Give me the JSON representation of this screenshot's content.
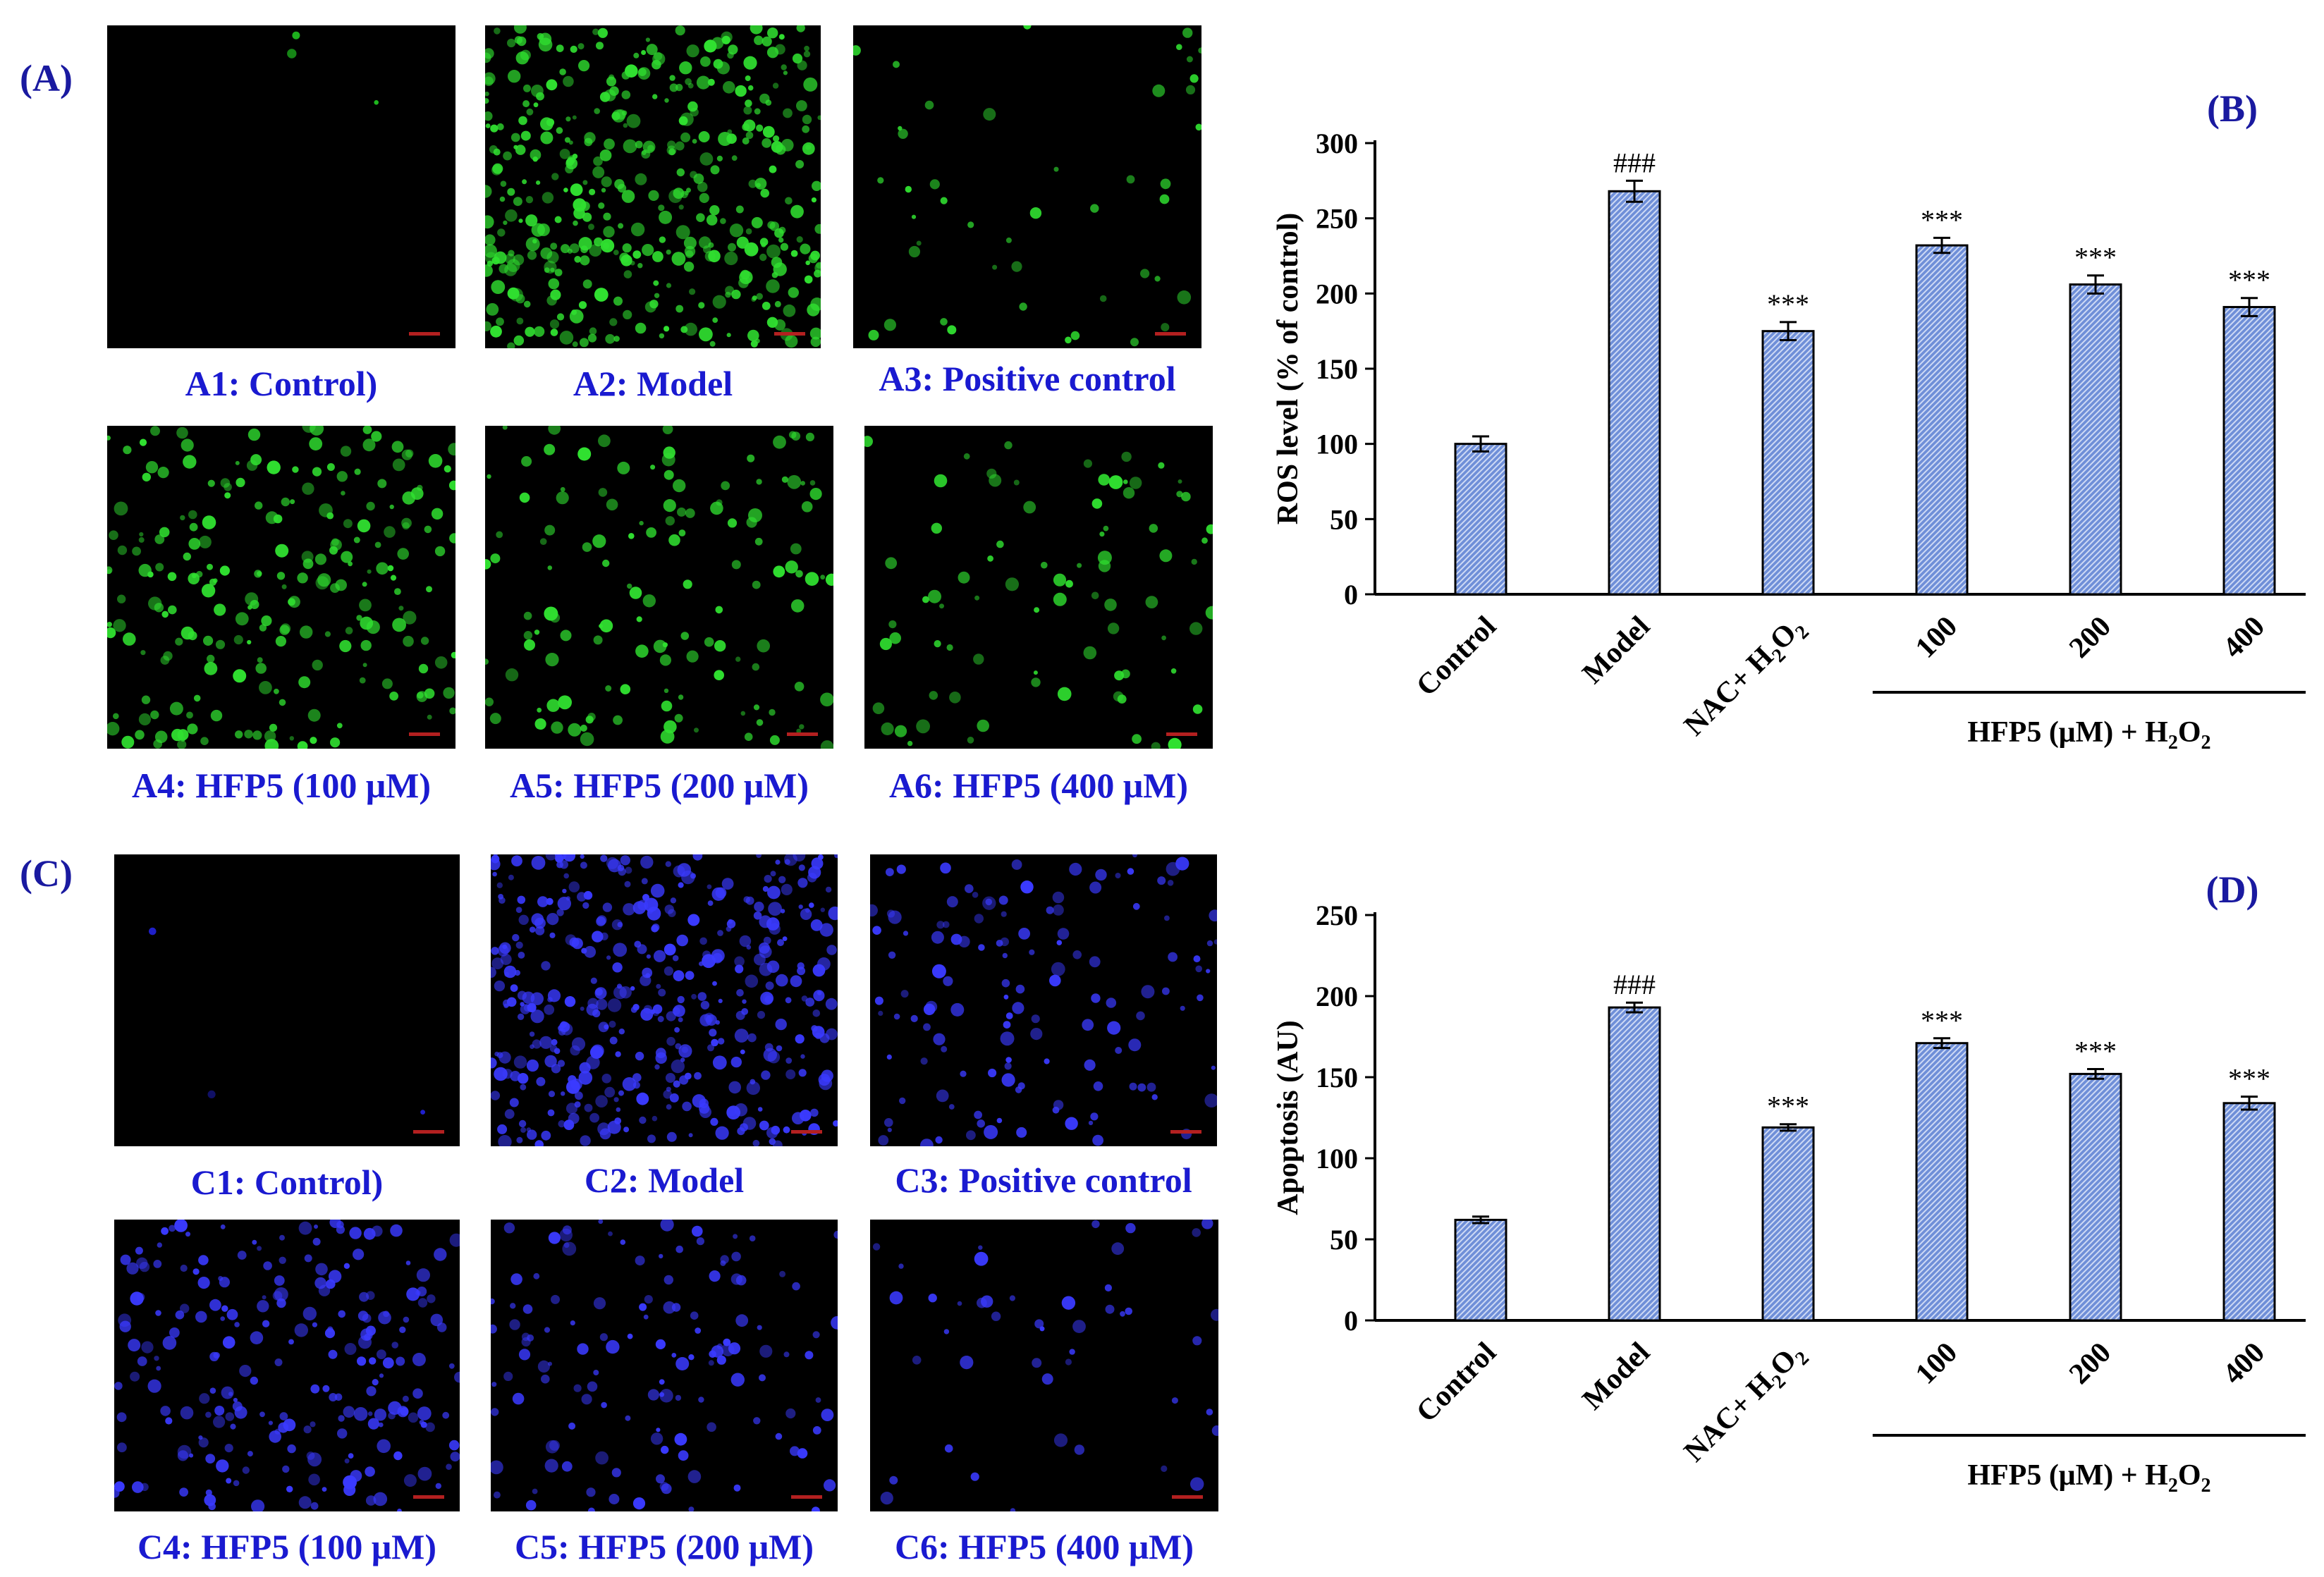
{
  "panels": {
    "A": "(A)",
    "B": "(B)",
    "C": "(C)",
    "D": "(D)"
  },
  "ros_images": [
    {
      "caption": "A1: Control)",
      "density": "minimal",
      "color": "#20c020"
    },
    {
      "caption": "A2: Model",
      "density": "very high",
      "color": "#30e030"
    },
    {
      "caption": "A3: Positive control",
      "density": "low",
      "color": "#30e030"
    },
    {
      "caption": "A4: HFP5 (100 μM)",
      "density": "high",
      "color": "#30e030"
    },
    {
      "caption": "A5: HFP5 (200 μM)",
      "density": "medium",
      "color": "#30e030"
    },
    {
      "caption": "A6: HFP5 (400 μM)",
      "density": "medium-low",
      "color": "#30e030"
    }
  ],
  "apoptosis_images": [
    {
      "caption": "C1: Control)",
      "density": "minimal",
      "color": "#2020d0"
    },
    {
      "caption": "C2: Model",
      "density": "very high",
      "color": "#3a3aff"
    },
    {
      "caption": "C3: Positive control",
      "density": "medium",
      "color": "#3a3aff"
    },
    {
      "caption": "C4: HFP5 (100 μM)",
      "density": "high",
      "color": "#3a3aff"
    },
    {
      "caption": "C5: HFP5 (200 μM)",
      "density": "medium",
      "color": "#3a3aff"
    },
    {
      "caption": "C6: HFP5 (400 μM)",
      "density": "low",
      "color": "#3a3aff"
    }
  ],
  "chart_data": [
    {
      "type": "bar",
      "panel": "B",
      "categories": [
        "Control",
        "Model",
        "NAC+ H2O2",
        "100",
        "200",
        "400"
      ],
      "values": [
        100,
        268,
        175,
        232,
        206,
        191
      ],
      "errors": [
        5,
        7,
        6,
        5,
        6,
        6
      ],
      "annotations": [
        "",
        "###",
        "***",
        "***",
        "***",
        "***"
      ],
      "ylabel": "ROS level (% of control)",
      "ylim": [
        0,
        300
      ],
      "yticks": [
        0,
        50,
        100,
        150,
        200,
        250,
        300
      ],
      "group_label": "HFP5 (μM) + H2O2",
      "bar_color": "#6f8fd8"
    },
    {
      "type": "bar",
      "panel": "D",
      "categories": [
        "Control",
        "Model",
        "NAC+ H2O2",
        "100",
        "200",
        "400"
      ],
      "values": [
        62,
        193,
        119,
        171,
        152,
        134
      ],
      "errors": [
        2,
        3,
        2,
        3,
        3,
        4
      ],
      "annotations": [
        "",
        "###",
        "***",
        "***",
        "***",
        "***"
      ],
      "ylabel": "Apoptosis (AU)",
      "ylim": [
        0,
        250
      ],
      "yticks": [
        0,
        50,
        100,
        150,
        200,
        250
      ],
      "group_label": "HFP5 (μM) + H2O2",
      "bar_color": "#6f8fd8"
    }
  ]
}
